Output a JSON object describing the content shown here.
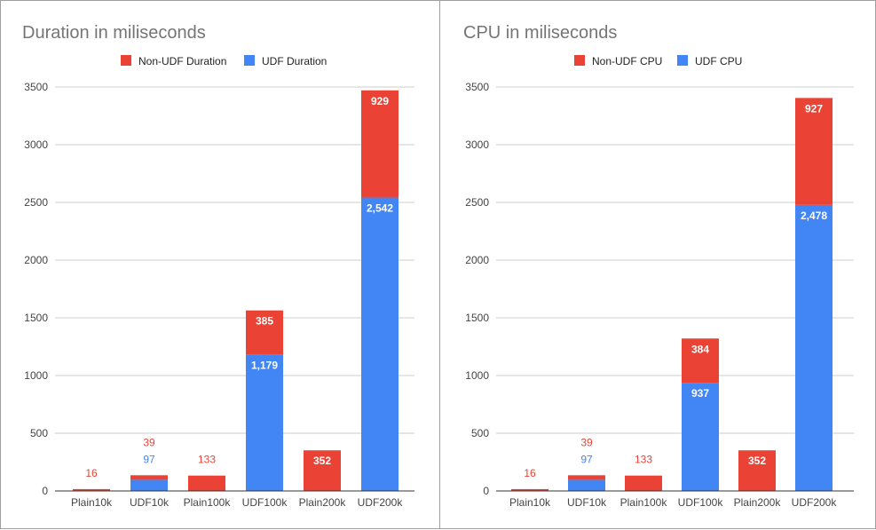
{
  "colors": {
    "non_udf": "#ea4335",
    "udf": "#4285f4",
    "grid": "#cccccc",
    "axis": "#333333"
  },
  "chart_data": [
    {
      "type": "bar",
      "stacked": true,
      "title": "Duration in miliseconds",
      "legend_position": "top",
      "grid": true,
      "ylim": [
        0,
        3500
      ],
      "yticks": [
        0,
        500,
        1000,
        1500,
        2000,
        2500,
        3000,
        3500
      ],
      "categories": [
        "Plain10k",
        "UDF10k",
        "Plain100k",
        "UDF100k",
        "Plain200k",
        "UDF200k"
      ],
      "series": [
        {
          "name": "UDF Duration",
          "color": "#4285f4",
          "values": [
            0,
            97,
            0,
            1179,
            0,
            2542
          ],
          "labels": [
            "",
            "97",
            "",
            "1,179",
            "",
            "2,542"
          ]
        },
        {
          "name": "Non-UDF Duration",
          "color": "#ea4335",
          "values": [
            16,
            39,
            133,
            385,
            352,
            929
          ],
          "labels": [
            "16",
            "39",
            "133",
            "385",
            "352",
            "929"
          ]
        }
      ],
      "legend_order": [
        "Non-UDF Duration",
        "UDF Duration"
      ]
    },
    {
      "type": "bar",
      "stacked": true,
      "title": "CPU in miliseconds",
      "legend_position": "top",
      "grid": true,
      "ylim": [
        0,
        3500
      ],
      "yticks": [
        0,
        500,
        1000,
        1500,
        2000,
        2500,
        3000,
        3500
      ],
      "categories": [
        "Plain10k",
        "UDF10k",
        "Plain100k",
        "UDF100k",
        "Plain200k",
        "UDF200k"
      ],
      "series": [
        {
          "name": "UDF CPU",
          "color": "#4285f4",
          "values": [
            0,
            97,
            0,
            937,
            0,
            2478
          ],
          "labels": [
            "",
            "97",
            "",
            "937",
            "",
            "2,478"
          ]
        },
        {
          "name": "Non-UDF CPU",
          "color": "#ea4335",
          "values": [
            16,
            39,
            133,
            384,
            352,
            927
          ],
          "labels": [
            "16",
            "39",
            "133",
            "384",
            "352",
            "927"
          ]
        }
      ],
      "legend_order": [
        "Non-UDF CPU",
        "UDF CPU"
      ]
    }
  ]
}
